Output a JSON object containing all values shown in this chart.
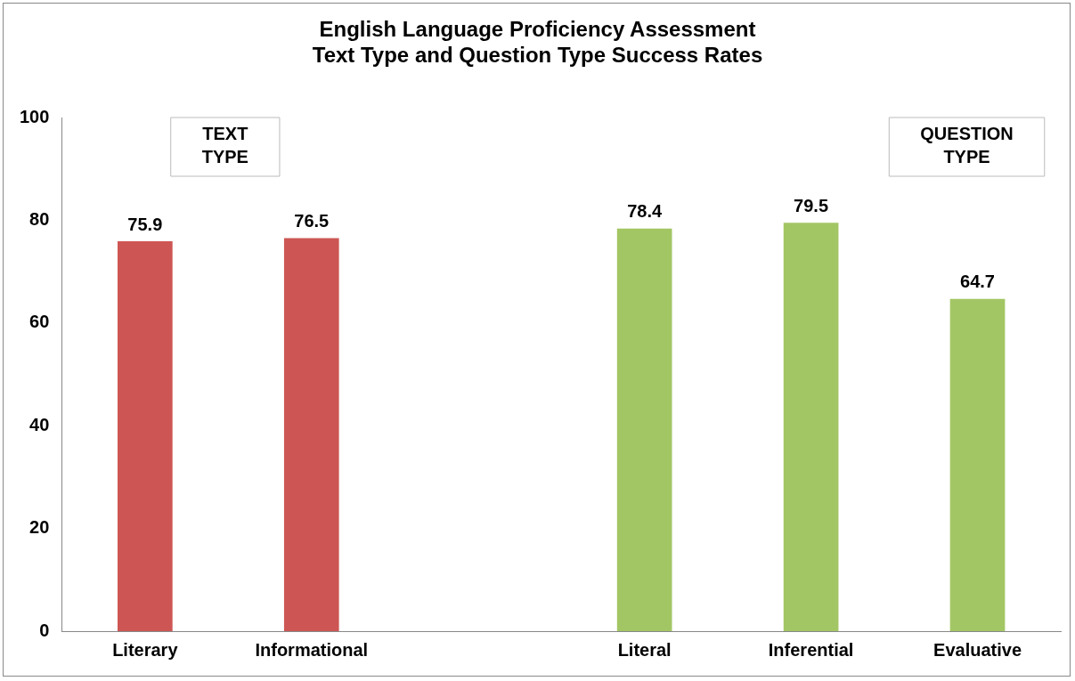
{
  "chart_data": {
    "type": "bar",
    "title": "English Language Proficiency Assessment",
    "subtitle": "Text Type and Question Type Success Rates",
    "categories": [
      "Literary",
      "Informational",
      null,
      "Literal",
      "Inferential",
      "Evaluative"
    ],
    "values": [
      75.9,
      76.5,
      null,
      78.4,
      79.5,
      64.7
    ],
    "colors": [
      "#cd5654",
      "#cd5654",
      "#cd5654",
      "#a3c664",
      "#a3c664",
      "#a3c664"
    ],
    "ylim": [
      0,
      100
    ],
    "yticks": [
      0,
      20,
      40,
      60,
      80,
      100
    ],
    "grid": false,
    "legend": false,
    "data_labels": true,
    "annotations": [
      "TEXT TYPE",
      "QUESTION TYPE"
    ]
  }
}
